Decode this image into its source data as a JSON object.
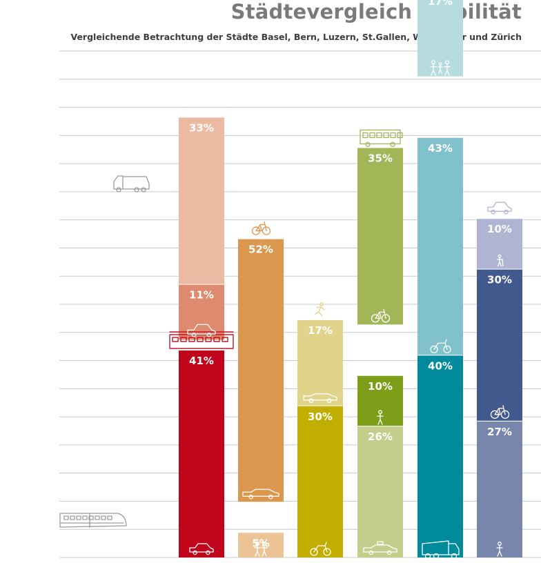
{
  "title": "Städtevergleich Mobilität",
  "subtitle": "Vergleichende Betrachtung der Städte Basel, Bern, Luzern, St.Gallen, Winterthur und Zürich",
  "chart_data": {
    "type": "bar",
    "stacked": true,
    "ylim": [
      0,
      100
    ],
    "grid": true,
    "labels_inside_segments": true,
    "columns": [
      {
        "icons": [
          "train-icon"
        ],
        "segments": []
      },
      {
        "icons": [
          "garbage-truck-icon"
        ],
        "segments": [
          {
            "value": 41,
            "label": "41%",
            "color": "#c0041c",
            "icon": "car-icon"
          },
          {
            "value": 2,
            "label": "",
            "color": "#ffffff",
            "icon": "tram-icon"
          },
          {
            "value": 11,
            "label": "11%",
            "color": "#de8a6e",
            "icon": "minivan-icon"
          },
          {
            "value": 33,
            "label": "33%",
            "color": "#ecbaa2",
            "icon": ""
          }
        ]
      },
      {
        "icons": [],
        "segments": [
          {
            "value": 5,
            "label": "5%",
            "color": "#ecc395",
            "icon": "couple-icon"
          },
          {
            "value": 52,
            "label": "52%",
            "color": "#dc974f",
            "icon": "sedan-icon",
            "gap_below": 6
          },
          {
            "value": 0,
            "label": "",
            "color": "#ffffff",
            "icon": "bicycle-icon"
          }
        ]
      },
      {
        "icons": [],
        "segments": [
          {
            "value": 30,
            "label": "30%",
            "color": "#c1ae00",
            "icon": "motorcycle-icon"
          },
          {
            "value": 17,
            "label": "17%",
            "color": "#e2d38a",
            "icon": "sportscar-icon"
          },
          {
            "value": 0,
            "label": "",
            "color": "#ffffff",
            "icon": "runner-icon"
          }
        ]
      },
      {
        "icons": [],
        "segments": [
          {
            "value": 26,
            "label": "26%",
            "color": "#c4cd8b",
            "icon": "taxi-icon"
          },
          {
            "value": 10,
            "label": "10%",
            "color": "#7d9e18",
            "icon": "pedestrian-icon"
          },
          {
            "value": 35,
            "label": "35%",
            "color": "#a2b557",
            "icon": "scooter-icon",
            "gap_below": 10
          },
          {
            "value": 0,
            "label": "",
            "color": "#ffffff",
            "icon": "bus-icon"
          }
        ]
      },
      {
        "icons": [],
        "segments": [
          {
            "value": 40,
            "label": "40%",
            "color": "#008b9c",
            "icon": "cement-truck-icon"
          },
          {
            "value": 43,
            "label": "43%",
            "color": "#80c1cc",
            "icon": "moped-icon"
          },
          {
            "value": 17,
            "label": "17%",
            "color": "#b6dce0",
            "icon": "family-icon",
            "gap_below": 12
          }
        ]
      },
      {
        "icons": [],
        "segments": [
          {
            "value": 27,
            "label": "27%",
            "color": "#7986ab",
            "icon": "walking-person-icon"
          },
          {
            "value": 30,
            "label": "30%",
            "color": "#41598d",
            "icon": "city-bike-icon"
          },
          {
            "value": 10,
            "label": "10%",
            "color": "#aeb4d1",
            "icon": "walking-cane-icon"
          },
          {
            "value": 0,
            "label": "",
            "color": "#ffffff",
            "icon": "small-car-icon"
          }
        ]
      }
    ]
  }
}
